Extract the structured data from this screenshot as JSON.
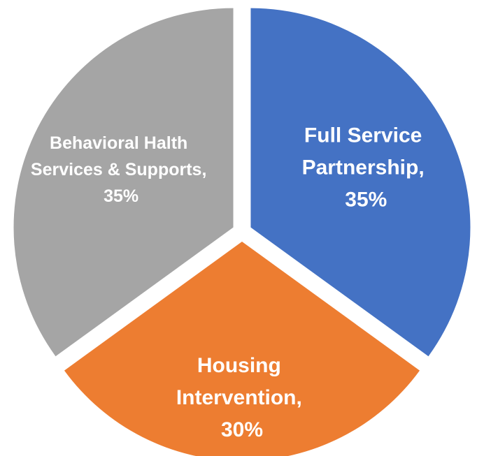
{
  "chart_data": {
    "type": "pie",
    "values": [
      35,
      30,
      35
    ],
    "value_labels": [
      "Full Service Partnership, 35%",
      "Housing Intervention, 30%",
      "Behavioral Halth Services & Supports, 35%"
    ],
    "colors": [
      "#4472c4",
      "#ed7d31",
      "#a5a5a5"
    ]
  }
}
